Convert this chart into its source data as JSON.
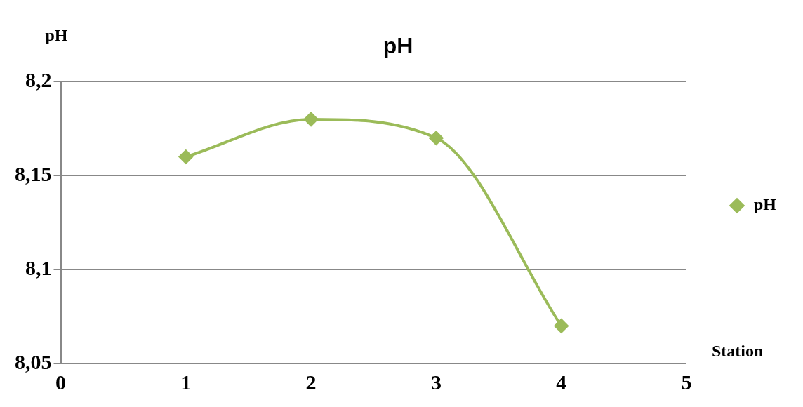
{
  "chart_data": {
    "type": "line",
    "title": "pH",
    "xlabel": "Station",
    "ylabel": "pH",
    "x": [
      1,
      2,
      3,
      4
    ],
    "series": [
      {
        "name": "pH",
        "color": "#9bbb59",
        "values": [
          8.16,
          8.18,
          8.17,
          8.07
        ]
      }
    ],
    "xlim": [
      0,
      5
    ],
    "xticks": [
      0,
      1,
      2,
      3,
      4,
      5
    ],
    "ylim": [
      8.05,
      8.2
    ],
    "yticks": [
      {
        "value": 8.05,
        "label": "8,05"
      },
      {
        "value": 8.1,
        "label": "8,1"
      },
      {
        "value": 8.15,
        "label": "8,15"
      },
      {
        "value": 8.2,
        "label": "8,2"
      }
    ],
    "grid": "y",
    "legend": "right",
    "marker": "diamond",
    "line_style": "solid"
  }
}
